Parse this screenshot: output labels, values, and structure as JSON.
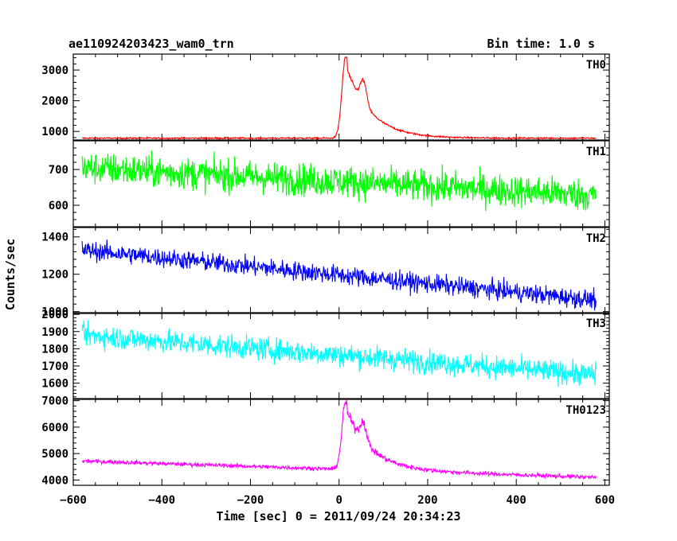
{
  "chart_data": {
    "type": "line",
    "title": "ae110924203423_wam0_trn",
    "bin_time_label": "Bin time: 1.0 s",
    "ylabel": "Counts/sec",
    "xlabel": "Time [sec] 0 = 2011/09/24 20:34:23",
    "xlim": [
      -600,
      610
    ],
    "x_ticks": [
      -600,
      -400,
      -200,
      0,
      200,
      400,
      600
    ],
    "x_tick_labels": [
      "−600",
      "−400",
      "−200",
      "0",
      "200",
      "400",
      "600"
    ],
    "x_range_data": [
      -580,
      580
    ],
    "grid": false,
    "panels": [
      {
        "name": "TH0",
        "color": "#ff0000",
        "ylim": [
          720,
          3520
        ],
        "y_ticks": [
          1000,
          2000,
          3000
        ],
        "y_tick_labels": [
          "1000",
          "2000",
          "3000"
        ],
        "baseline_start": 780,
        "baseline_end": 780,
        "noise": 18,
        "peak": 3420,
        "peak_time": 15,
        "secondary_peak": 2900,
        "secondary_time": 55
      },
      {
        "name": "TH1",
        "color": "#00ff00",
        "ylim": [
          540,
          780
        ],
        "y_ticks": [
          600,
          700
        ],
        "y_tick_labels": [
          "600",
          "700"
        ],
        "baseline_start": 705,
        "baseline_end": 628,
        "noise": 32
      },
      {
        "name": "TH2",
        "color": "#0000ff",
        "ylim": [
          990,
          1450
        ],
        "y_ticks": [
          1000,
          1200,
          1400
        ],
        "y_tick_labels": [
          "1000",
          "1200",
          "1400"
        ],
        "baseline_start": 1330,
        "baseline_end": 1062,
        "noise": 36
      },
      {
        "name": "TH3",
        "color": "#00ffff",
        "ylim": [
          1510,
          2010
        ],
        "y_ticks": [
          1600,
          1700,
          1800,
          1900,
          2000
        ],
        "y_tick_labels": [
          "1600",
          "1700",
          "1800",
          "1900",
          "2000"
        ],
        "baseline_start": 1880,
        "baseline_end": 1648,
        "noise": 48
      },
      {
        "name": "TH0123",
        "color": "#ff00ff",
        "ylim": [
          3800,
          7050
        ],
        "y_ticks": [
          4000,
          5000,
          6000,
          7000
        ],
        "y_tick_labels": [
          "4000",
          "5000",
          "6000",
          "7000"
        ],
        "baseline_start": 4720,
        "baseline_end": 4100,
        "noise": 55,
        "peak": 6950,
        "peak_time": 15,
        "secondary_peak": 6400,
        "secondary_time": 55
      }
    ]
  }
}
